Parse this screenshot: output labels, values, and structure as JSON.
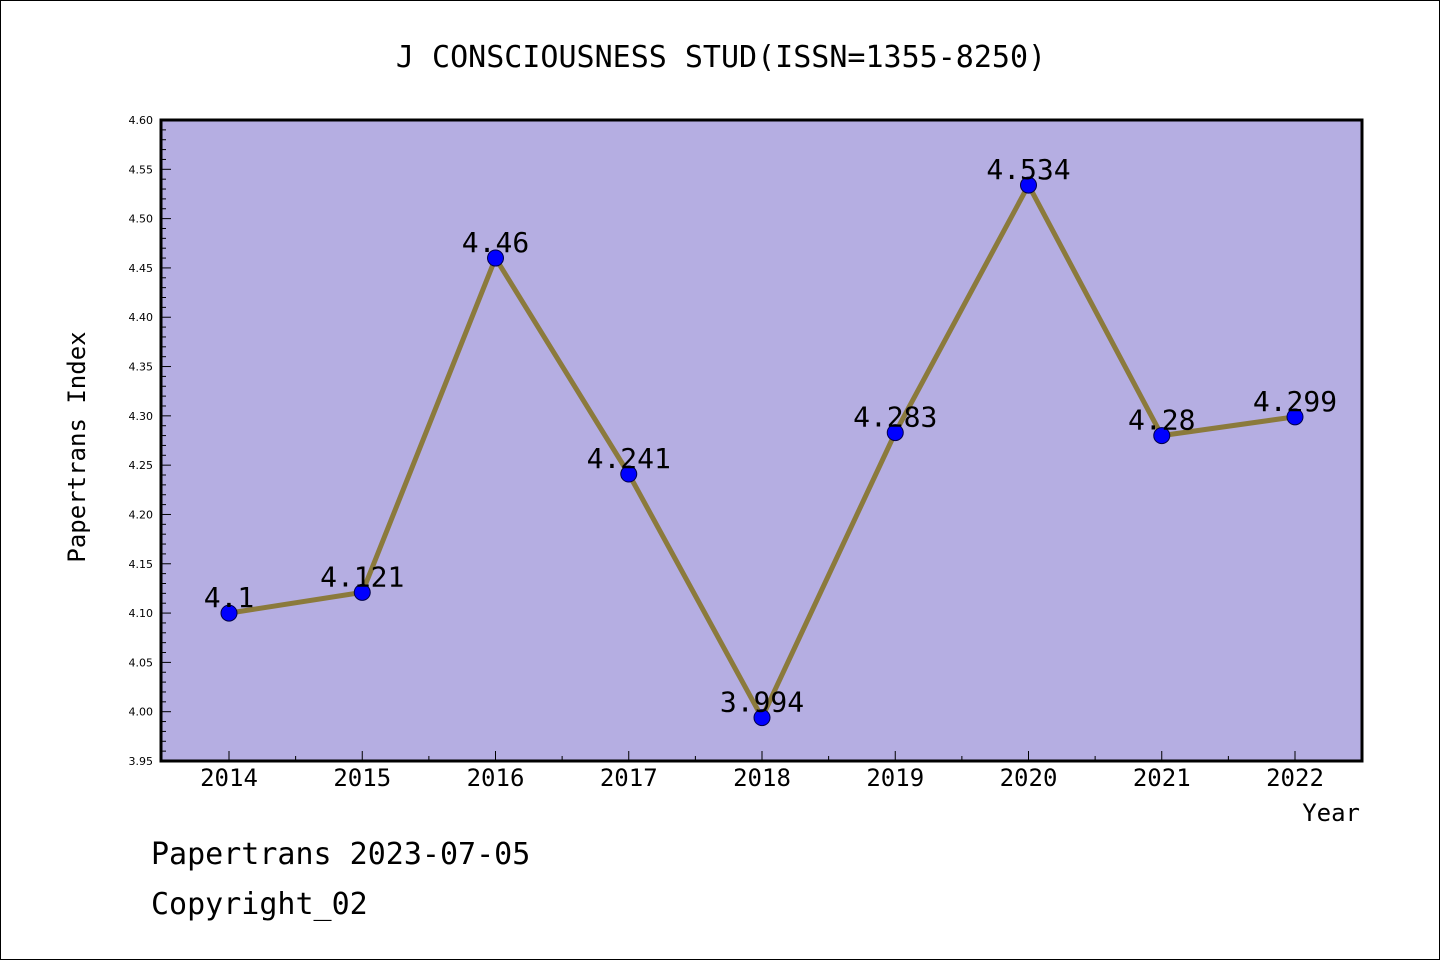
{
  "chart_data": {
    "type": "line",
    "title": "J CONSCIOUSNESS STUD(ISSN=1355-8250)",
    "xlabel": "Year",
    "ylabel": "Papertrans Index",
    "ylim": [
      3.95,
      4.6
    ],
    "yticks": [
      "3.95",
      "4.00",
      "4.05",
      "4.10",
      "4.15",
      "4.20",
      "4.25",
      "4.30",
      "4.35",
      "4.40",
      "4.45",
      "4.50",
      "4.55",
      "4.60"
    ],
    "categories": [
      "2014",
      "2015",
      "2016",
      "2017",
      "2018",
      "2019",
      "2020",
      "2021",
      "2022"
    ],
    "values": [
      4.1,
      4.121,
      4.46,
      4.241,
      3.994,
      4.283,
      4.534,
      4.28,
      4.299
    ],
    "value_labels": [
      "4.1",
      "4.121",
      "4.46",
      "4.241",
      "3.994",
      "4.283",
      "4.534",
      "4.28",
      "4.299"
    ],
    "grid": false,
    "colors": {
      "plot_background": "#b5aee2",
      "line": "#8b7a3c",
      "marker": "#0000ff"
    }
  },
  "footer": {
    "line1": "Papertrans 2023-07-05",
    "line2": "Copyright_02"
  }
}
